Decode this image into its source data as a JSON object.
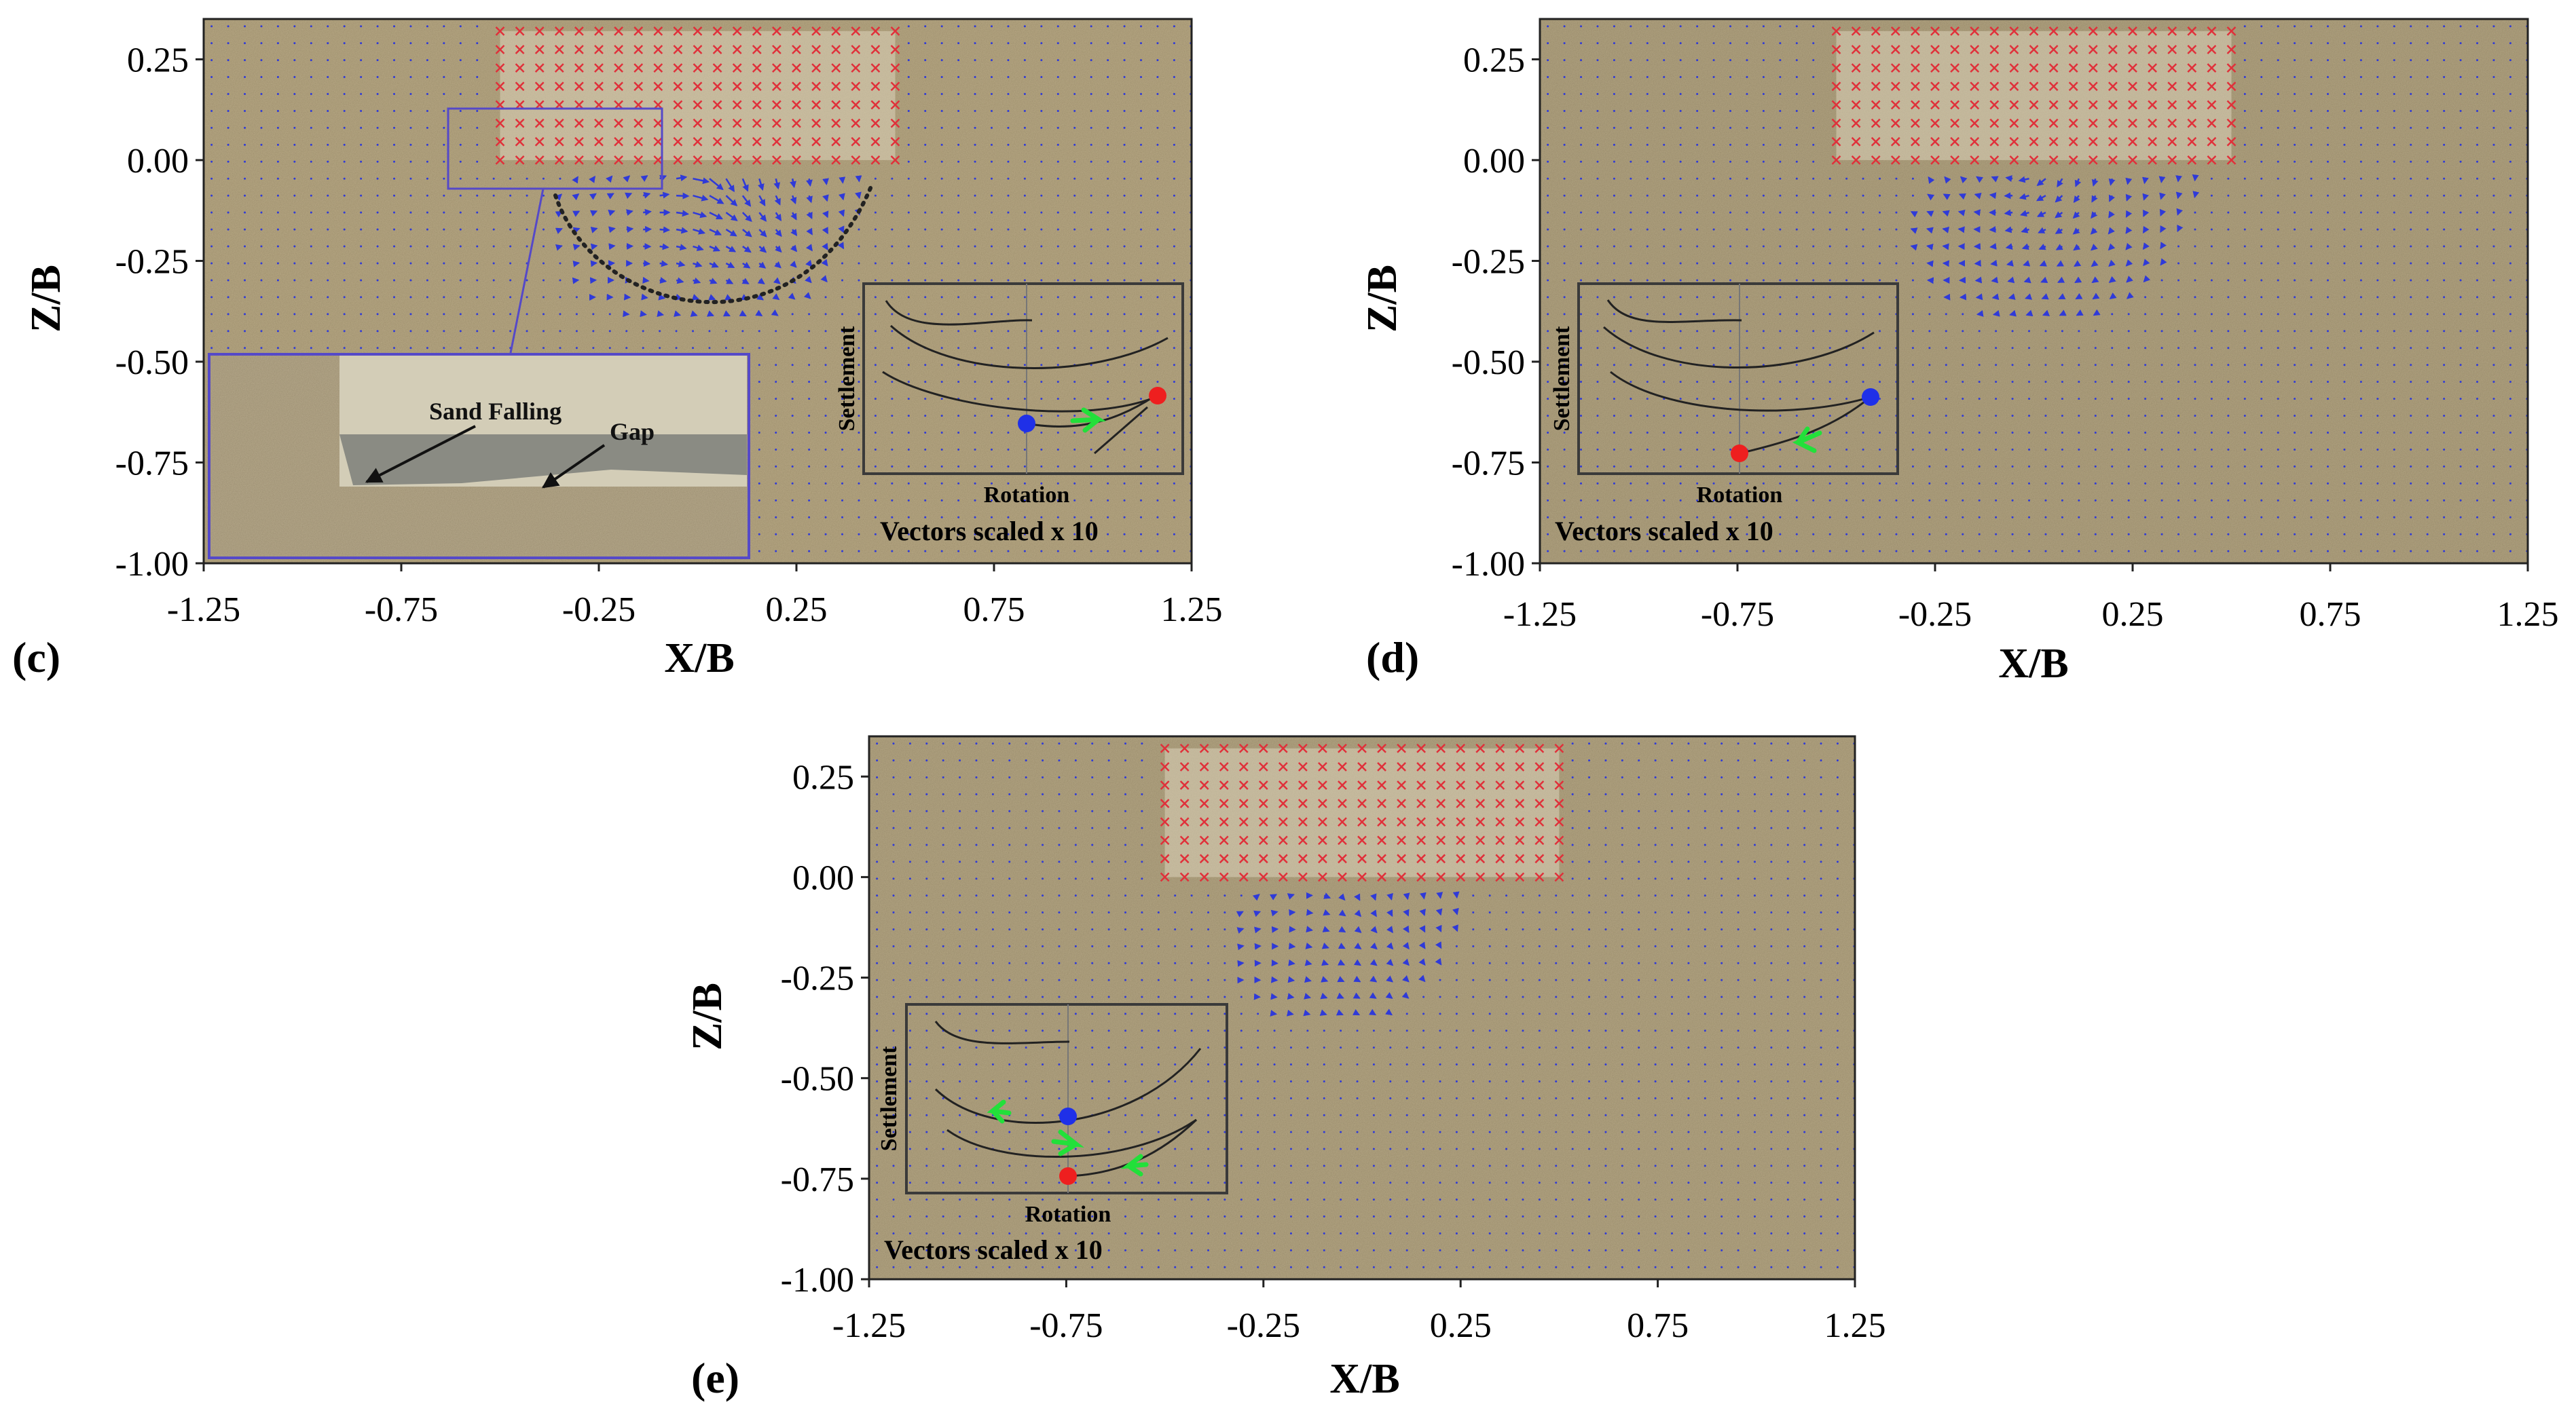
{
  "colors": {
    "sand": "#b9aa86",
    "marker_x": "#e0303a",
    "vector": "#2f3ad8",
    "inset_frame": "#3a3a3a",
    "zoom_frame": "#5549c8",
    "dot_blue": "#1f30e8",
    "dot_red": "#ee1f1f",
    "arrow_green": "#22e03a",
    "slip_surface": "#222222"
  },
  "chart_data": [
    {
      "panel": "(c)",
      "type": "scatter",
      "title": "",
      "xlabel": "X/B",
      "ylabel": "Z/B",
      "xlim": [
        -1.25,
        1.25
      ],
      "ylim": [
        -1.0,
        0.35
      ],
      "xticks": [
        "-1.25",
        "-0.75",
        "-0.25",
        "0.25",
        "0.75",
        "1.25"
      ],
      "yticks": [
        "0.25",
        "0.00",
        "-0.25",
        "-0.50",
        "-0.75",
        "-1.00"
      ],
      "footing_region": {
        "x": [
          -0.5,
          0.5
        ],
        "z": [
          0.0,
          0.32
        ]
      },
      "vector_note": "Vectors scaled x 10",
      "inset": {
        "xlabel": "Rotation",
        "ylabel": "Settlement"
      },
      "zoom_annotations": [
        "Sand Falling",
        "Gap"
      ],
      "slip_surface": "dotted"
    },
    {
      "panel": "(d)",
      "type": "scatter",
      "title": "",
      "xlabel": "X/B",
      "ylabel": "Z/B",
      "xlim": [
        -1.25,
        1.25
      ],
      "ylim": [
        -1.0,
        0.35
      ],
      "xticks": [
        "-1.25",
        "-0.75",
        "-0.25",
        "0.25",
        "0.75",
        "1.25"
      ],
      "yticks": [
        "0.25",
        "0.00",
        "-0.25",
        "-0.50",
        "-0.75",
        "-1.00"
      ],
      "footing_region": {
        "x": [
          -0.5,
          0.5
        ],
        "z": [
          0.0,
          0.32
        ]
      },
      "vector_note": "Vectors scaled x 10",
      "inset": {
        "xlabel": "Rotation",
        "ylabel": "Settlement"
      }
    },
    {
      "panel": "(e)",
      "type": "scatter",
      "title": "",
      "xlabel": "X/B",
      "ylabel": "Z/B",
      "xlim": [
        -1.25,
        1.25
      ],
      "ylim": [
        -1.0,
        0.35
      ],
      "xticks": [
        "-1.25",
        "-0.75",
        "-0.25",
        "0.25",
        "0.75",
        "1.25"
      ],
      "yticks": [
        "0.25",
        "0.00",
        "-0.25",
        "-0.50",
        "-0.75",
        "-1.00"
      ],
      "footing_region": {
        "x": [
          -0.5,
          0.5
        ],
        "z": [
          0.0,
          0.32
        ]
      },
      "vector_note": "Vectors scaled x 10",
      "inset": {
        "xlabel": "Rotation",
        "ylabel": "Settlement"
      }
    }
  ]
}
